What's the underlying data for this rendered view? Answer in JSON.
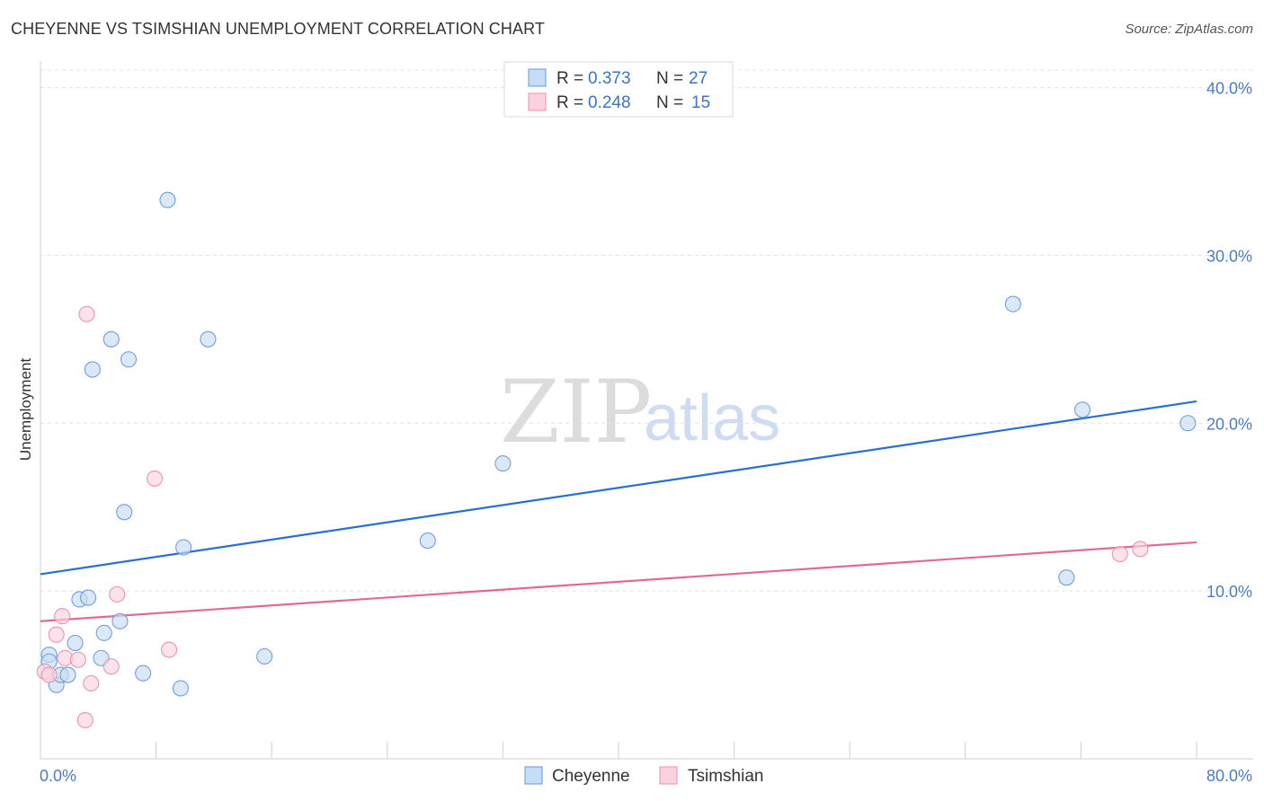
{
  "title": "CHEYENNE VS TSIMSHIAN UNEMPLOYMENT CORRELATION CHART",
  "source": "Source: ZipAtlas.com",
  "watermark": {
    "zip": "ZIP",
    "atlas": "atlas"
  },
  "legend": {
    "rows": [
      {
        "r_label": "R = ",
        "r_value": "0.373",
        "n_label": "N = ",
        "n_value": "27",
        "color": "#a8c8f0"
      },
      {
        "r_label": "R = ",
        "r_value": "0.248",
        "n_label": "N = ",
        "n_value": "15",
        "color": "#f7b8cb"
      }
    ]
  },
  "bottom_legend": [
    {
      "label": "Cheyenne",
      "color": "#a8c8f0"
    },
    {
      "label": "Tsimshian",
      "color": "#f7b8cb"
    }
  ],
  "chart_data": {
    "type": "scatter",
    "title": "CHEYENNE VS TSIMSHIAN UNEMPLOYMENT CORRELATION CHART",
    "xlabel": "",
    "ylabel": "Unemployment",
    "xlim": [
      0,
      80
    ],
    "ylim": [
      0,
      42
    ],
    "x_tick_labels": [
      "0.0%",
      "80.0%"
    ],
    "y_ticks": [
      10,
      20,
      30,
      40
    ],
    "y_tick_labels": [
      "10.0%",
      "20.0%",
      "30.0%",
      "40.0%"
    ],
    "grid": true,
    "series": [
      {
        "name": "Cheyenne",
        "color": "#6f9fe0",
        "fill": "#c7dcf5",
        "line_color": "#2a6fd0",
        "trend": {
          "x": [
            0,
            80
          ],
          "y": [
            11.0,
            21.3
          ]
        },
        "points": [
          [
            0.6,
            6.2
          ],
          [
            0.6,
            5.8
          ],
          [
            1.1,
            4.4
          ],
          [
            1.4,
            5.0
          ],
          [
            1.9,
            5.0
          ],
          [
            2.4,
            6.9
          ],
          [
            2.7,
            9.5
          ],
          [
            3.3,
            9.6
          ],
          [
            3.6,
            23.2
          ],
          [
            4.2,
            6.0
          ],
          [
            4.4,
            7.5
          ],
          [
            4.9,
            25.0
          ],
          [
            5.5,
            8.2
          ],
          [
            5.8,
            14.7
          ],
          [
            6.1,
            23.8
          ],
          [
            7.1,
            5.1
          ],
          [
            8.8,
            33.3
          ],
          [
            9.7,
            4.2
          ],
          [
            9.9,
            12.6
          ],
          [
            11.6,
            25.0
          ],
          [
            15.5,
            6.1
          ],
          [
            26.8,
            13.0
          ],
          [
            32.0,
            17.6
          ],
          [
            67.3,
            27.1
          ],
          [
            71.0,
            10.8
          ],
          [
            72.1,
            20.8
          ],
          [
            79.4,
            20.0
          ]
        ]
      },
      {
        "name": "Tsimshian",
        "color": "#ec93b0",
        "fill": "#fad2de",
        "line_color": "#e06a95",
        "trend": {
          "x": [
            0,
            80
          ],
          "y": [
            8.2,
            12.9
          ]
        },
        "points": [
          [
            0.3,
            5.2
          ],
          [
            0.6,
            5.0
          ],
          [
            1.1,
            7.4
          ],
          [
            1.5,
            8.5
          ],
          [
            1.7,
            6.0
          ],
          [
            2.6,
            5.9
          ],
          [
            3.1,
            2.3
          ],
          [
            3.2,
            26.5
          ],
          [
            3.5,
            4.5
          ],
          [
            4.9,
            5.5
          ],
          [
            5.3,
            9.8
          ],
          [
            7.9,
            16.7
          ],
          [
            8.9,
            6.5
          ],
          [
            74.7,
            12.2
          ],
          [
            76.1,
            12.5
          ]
        ]
      }
    ]
  }
}
